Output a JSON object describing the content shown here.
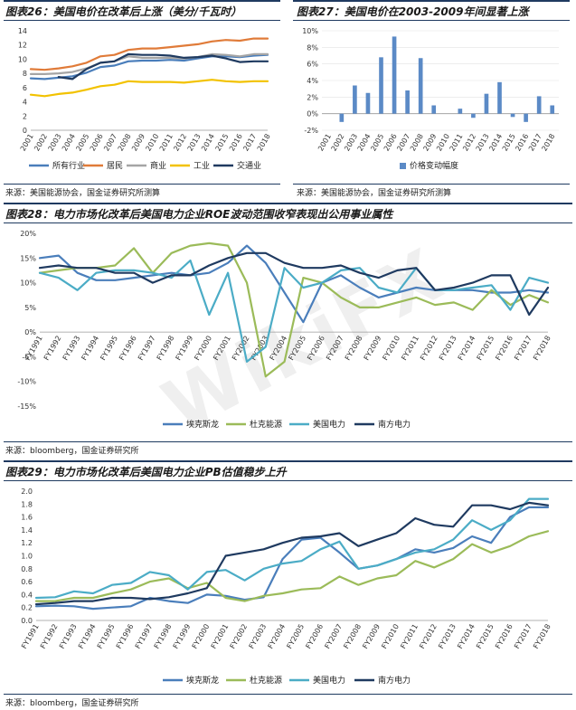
{
  "panels": {
    "fig26": {
      "title": "图表26：美国电价在改革后上涨（美分/千瓦时）",
      "source": "来源：美国能源协会，国金证券研究所测算"
    },
    "fig27": {
      "title": "图表27：美国电价在2003-2009年间显著上涨",
      "source": "来源：美国能源协会，国金证券研究所测算"
    },
    "fig28": {
      "title": "图表28：电力市场化改革后美国电力企业ROE波动范围收窄表现出公用事业属性",
      "source": "来源：bloomberg，国金证券研究所"
    },
    "fig29": {
      "title": "图表29：电力市场化改革后美国电力企业PB估值稳步上升",
      "source": "来源：bloomberg，国金证券研究所"
    }
  },
  "watermark": "WikiFX",
  "colors": {
    "blue": "#4a7ebb",
    "orange": "#e07b39",
    "gray": "#a5a5a5",
    "yellow": "#f2c200",
    "navy": "#1f3a60",
    "green": "#9bbb59",
    "teal": "#4bacc6",
    "bar": "#5b8ac6"
  },
  "chart_data": [
    {
      "id": "fig26",
      "type": "line",
      "x": [
        "2001",
        "2002",
        "2003",
        "2004",
        "2005",
        "2006",
        "2007",
        "2008",
        "2009",
        "2010",
        "2011",
        "2012",
        "2013",
        "2014",
        "2015",
        "2016",
        "2017",
        "2018"
      ],
      "ylim": [
        0,
        14
      ],
      "yticks": [
        0,
        2,
        4,
        6,
        8,
        10,
        12,
        14
      ],
      "legend_position": "bottom",
      "series": [
        {
          "name": "所有行业",
          "color": "#4a7ebb",
          "values": [
            7.3,
            7.2,
            7.4,
            7.6,
            8.1,
            8.9,
            9.1,
            9.7,
            9.8,
            9.8,
            9.9,
            9.8,
            10.1,
            10.4,
            10.4,
            10.3,
            10.5,
            10.6
          ]
        },
        {
          "name": "居民",
          "color": "#e07b39",
          "values": [
            8.6,
            8.5,
            8.7,
            9.0,
            9.5,
            10.4,
            10.6,
            11.3,
            11.5,
            11.5,
            11.7,
            11.9,
            12.1,
            12.5,
            12.7,
            12.6,
            12.9,
            12.9
          ]
        },
        {
          "name": "商业",
          "color": "#a5a5a5",
          "values": [
            7.9,
            7.9,
            8.0,
            8.2,
            8.7,
            9.5,
            9.7,
            10.4,
            10.2,
            10.2,
            10.2,
            10.1,
            10.3,
            10.7,
            10.6,
            10.4,
            10.7,
            10.7
          ]
        },
        {
          "name": "工业",
          "color": "#f2c200",
          "values": [
            5.0,
            4.8,
            5.1,
            5.3,
            5.7,
            6.2,
            6.4,
            6.9,
            6.8,
            6.8,
            6.8,
            6.7,
            6.9,
            7.1,
            6.9,
            6.8,
            6.9,
            6.9
          ]
        },
        {
          "name": "交通业",
          "color": "#1f3a60",
          "values": [
            null,
            null,
            7.5,
            7.2,
            8.6,
            9.5,
            9.7,
            10.7,
            10.6,
            10.6,
            10.5,
            10.2,
            10.3,
            10.5,
            10.1,
            9.6,
            9.7,
            9.7
          ]
        }
      ]
    },
    {
      "id": "fig27",
      "type": "bar",
      "categories": [
        "2001",
        "2002",
        "2003",
        "2004",
        "2005",
        "2006",
        "2007",
        "2008",
        "2009",
        "2010",
        "2011",
        "2012",
        "2013",
        "2014",
        "2015",
        "2016",
        "2017",
        "2018"
      ],
      "ylim": [
        -2,
        10
      ],
      "yticks": [
        -2,
        0,
        2,
        4,
        6,
        8,
        10
      ],
      "ytick_suffix": "%",
      "legend_position": "bottom",
      "series": [
        {
          "name": "价格变动幅度",
          "color": "#5b8ac6",
          "values": [
            0,
            -1.0,
            3.4,
            2.5,
            6.8,
            9.3,
            2.8,
            6.7,
            1.0,
            0,
            0.6,
            -0.5,
            2.4,
            3.8,
            -0.4,
            -1.0,
            2.1,
            1.0
          ]
        }
      ]
    },
    {
      "id": "fig28",
      "type": "line",
      "x": [
        "FY1991",
        "FY1992",
        "FY1993",
        "FY1994",
        "FY1995",
        "FY1996",
        "FY1997",
        "FY1998",
        "FY1999",
        "FY2000",
        "FY2001",
        "FY2002",
        "FY2003",
        "FY2004",
        "FY2005",
        "FY2006",
        "FY2007",
        "FY2008",
        "FY2009",
        "FY2010",
        "FY2011",
        "FY2012",
        "FY2013",
        "FY2014",
        "FY2015",
        "FY2016",
        "FY2017",
        "FY2018"
      ],
      "ylim": [
        -15,
        20
      ],
      "yticks": [
        -15,
        -10,
        -5,
        0,
        5,
        10,
        15,
        20
      ],
      "ytick_suffix": "%",
      "legend_position": "bottom",
      "series": [
        {
          "name": "埃克斯龙",
          "color": "#4a7ebb",
          "values": [
            15,
            15.5,
            12,
            10.5,
            10.5,
            11,
            11.5,
            12,
            11.5,
            12,
            14,
            17.5,
            14,
            8,
            2,
            10,
            11.5,
            9,
            7,
            8,
            9,
            8.5,
            8.5,
            8.5,
            8,
            8,
            8.5,
            8
          ]
        },
        {
          "name": "杜克能源",
          "color": "#9bbb59",
          "values": [
            12,
            12.5,
            13,
            13,
            13.5,
            17,
            12,
            16,
            17.5,
            18,
            17.5,
            10,
            -9,
            -6,
            11,
            10,
            7,
            5,
            5,
            6,
            7,
            5.5,
            6,
            4.5,
            8.5,
            5.5,
            7.5,
            6
          ]
        },
        {
          "name": "美国电力",
          "color": "#4bacc6",
          "values": [
            12,
            11,
            8.5,
            12,
            12.5,
            12.5,
            12,
            11,
            14.5,
            3.5,
            12,
            -6,
            -3,
            13,
            9,
            10,
            12.5,
            13,
            9,
            8,
            13,
            8.5,
            8.5,
            9,
            9.5,
            4.5,
            11,
            10
          ]
        },
        {
          "name": "南方电力",
          "color": "#1f3a60",
          "values": [
            13,
            13.5,
            13,
            13,
            12,
            12,
            10,
            11.5,
            11.5,
            13.5,
            15,
            16,
            16,
            14,
            13,
            13,
            13.5,
            12,
            11,
            12.5,
            13,
            8.5,
            9,
            10,
            11.5,
            11.5,
            3.5,
            9
          ]
        }
      ]
    },
    {
      "id": "fig29",
      "type": "line",
      "x": [
        "FY1991",
        "FY1992",
        "FY1993",
        "FY1994",
        "FY1995",
        "FY1996",
        "FY1997",
        "FY1998",
        "FY1999",
        "FY2000",
        "FY2001",
        "FY2002",
        "FY2003",
        "FY2004",
        "FY2005",
        "FY2006",
        "FY2007",
        "FY2008",
        "FY2009",
        "FY2010",
        "FY2011",
        "FY2012",
        "FY2013",
        "FY2014",
        "FY2015",
        "FY2016",
        "FY2017",
        "FY2018"
      ],
      "ylim": [
        0,
        2
      ],
      "yticks": [
        0,
        0.2,
        0.4,
        0.6,
        0.8,
        1.0,
        1.2,
        1.4,
        1.6,
        1.8,
        2.0
      ],
      "legend_position": "bottom",
      "series": [
        {
          "name": "埃克斯龙",
          "color": "#4a7ebb",
          "values": [
            0.22,
            0.23,
            0.22,
            0.18,
            0.2,
            0.22,
            0.35,
            0.3,
            0.27,
            0.4,
            0.38,
            0.32,
            0.36,
            0.95,
            1.25,
            1.28,
            1.05,
            0.8,
            0.85,
            0.95,
            1.1,
            1.05,
            1.12,
            1.3,
            1.2,
            1.6,
            1.75,
            1.75
          ]
        },
        {
          "name": "杜克能源",
          "color": "#9bbb59",
          "values": [
            0.3,
            0.3,
            0.35,
            0.35,
            0.42,
            0.48,
            0.6,
            0.65,
            0.5,
            0.58,
            0.35,
            0.3,
            0.38,
            0.42,
            0.48,
            0.5,
            0.68,
            0.55,
            0.65,
            0.7,
            0.92,
            0.82,
            0.95,
            1.18,
            1.05,
            1.15,
            1.3,
            1.38
          ]
        },
        {
          "name": "美国电力",
          "color": "#4bacc6",
          "values": [
            0.35,
            0.36,
            0.45,
            0.42,
            0.55,
            0.58,
            0.75,
            0.7,
            0.48,
            0.75,
            0.78,
            0.62,
            0.8,
            0.88,
            0.92,
            1.1,
            1.22,
            0.8,
            0.85,
            0.95,
            1.05,
            1.1,
            1.25,
            1.55,
            1.4,
            1.55,
            1.88,
            1.88
          ]
        },
        {
          "name": "南方电力",
          "color": "#1f3a60",
          "values": [
            0.25,
            0.27,
            0.3,
            0.3,
            0.35,
            0.35,
            0.33,
            0.36,
            0.42,
            0.5,
            1.0,
            1.05,
            1.1,
            1.2,
            1.28,
            1.3,
            1.35,
            1.15,
            1.25,
            1.35,
            1.58,
            1.48,
            1.45,
            1.78,
            1.78,
            1.72,
            1.82,
            1.78
          ]
        }
      ]
    }
  ]
}
